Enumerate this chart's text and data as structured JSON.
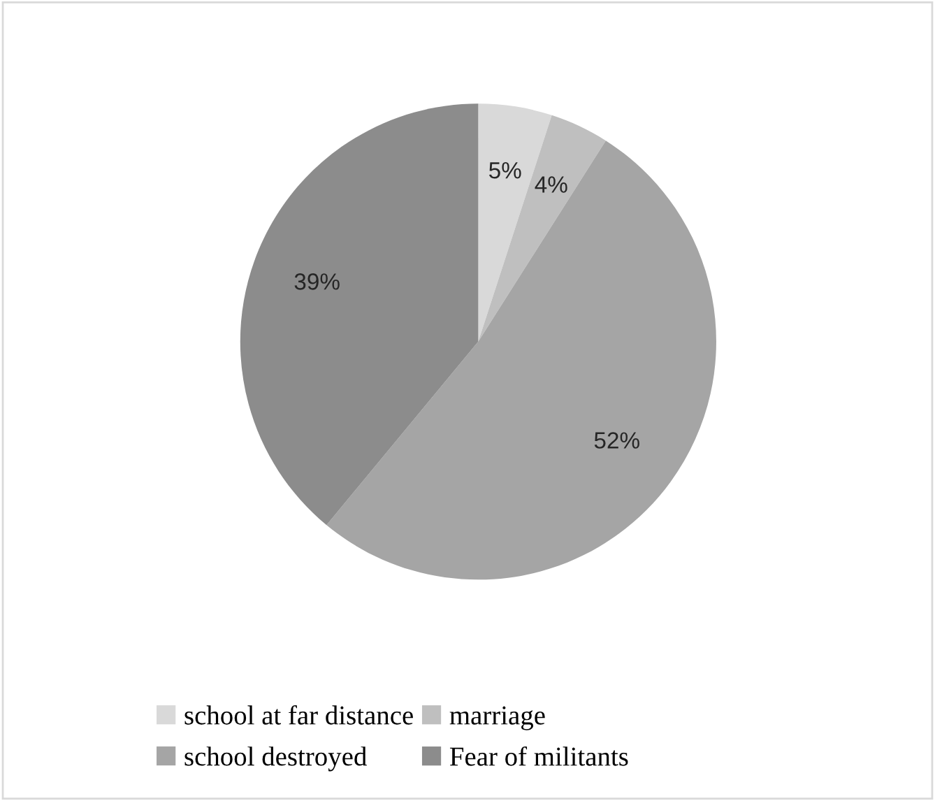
{
  "chart_data": {
    "type": "pie",
    "categories": [
      "school at far distance",
      "marriage",
      "school destroyed",
      "Fear of militants"
    ],
    "values": [
      5,
      4,
      52,
      39
    ],
    "colors": [
      "#d9d9d9",
      "#bfbfbf",
      "#a5a5a5",
      "#8c8c8c"
    ],
    "value_labels": [
      "5%",
      "4%",
      "52%",
      "39%"
    ],
    "legend": "bottom"
  }
}
